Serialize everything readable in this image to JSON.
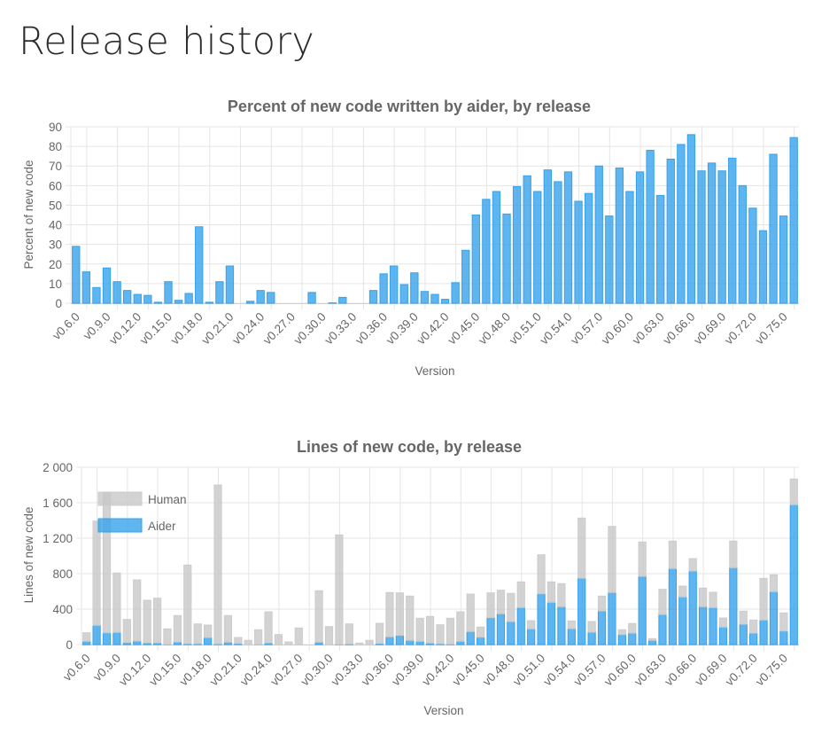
{
  "page": {
    "title": "Release history"
  },
  "colors": {
    "aider": "#36a2eb",
    "aider_fill": "rgba(54,162,235,0.8)",
    "human": "#cccccc",
    "human_fill": "rgba(200,200,200,0.8)",
    "grid": "#e5e5e5",
    "text": "#666666"
  },
  "chart_data": [
    {
      "type": "bar",
      "title": "Percent of new code written by aider, by release",
      "xlabel": "Version",
      "ylabel": "Percent of new code",
      "ylim": [
        0,
        90
      ],
      "yticks": [
        "0",
        "10",
        "20",
        "30",
        "40",
        "50",
        "60",
        "70",
        "80",
        "90"
      ],
      "ytick_values": [
        0,
        10,
        20,
        30,
        40,
        50,
        60,
        70,
        80,
        90
      ],
      "grid": true,
      "categories": [
        "v0.6.0",
        "v0.7.0",
        "v0.8.0",
        "v0.9.0",
        "v0.10.0",
        "v0.11.0",
        "v0.12.0",
        "v0.13.0",
        "v0.14.0",
        "v0.15.0",
        "v0.16.0",
        "v0.17.0",
        "v0.18.0",
        "v0.19.0",
        "v0.20.0",
        "v0.21.0",
        "v0.22.0",
        "v0.23.0",
        "v0.24.0",
        "v0.25.0",
        "v0.26.0",
        "v0.27.0",
        "v0.28.0",
        "v0.29.0",
        "v0.30.0",
        "v0.31.0",
        "v0.32.0",
        "v0.33.0",
        "v0.34.0",
        "v0.35.0",
        "v0.36.0",
        "v0.37.0",
        "v0.38.0",
        "v0.39.0",
        "v0.40.0",
        "v0.41.0",
        "v0.42.0",
        "v0.43.0",
        "v0.44.0",
        "v0.45.0",
        "v0.46.0",
        "v0.47.0",
        "v0.48.0",
        "v0.49.0",
        "v0.50.0",
        "v0.51.0",
        "v0.52.0",
        "v0.53.0",
        "v0.54.0",
        "v0.55.0",
        "v0.56.0",
        "v0.57.0",
        "v0.58.0",
        "v0.59.0",
        "v0.60.0",
        "v0.61.0",
        "v0.62.0",
        "v0.63.0",
        "v0.64.0",
        "v0.65.0",
        "v0.66.0",
        "v0.67.0",
        "v0.68.0",
        "v0.69.0",
        "v0.70.0",
        "v0.71.0",
        "v0.72.0",
        "v0.73.0",
        "v0.74.0",
        "v0.75.0",
        "v0.76.0"
      ],
      "shown_xticks": [
        "v0.6.0",
        "v0.9.0",
        "v0.12.0",
        "v0.15.0",
        "v0.18.0",
        "v0.21.0",
        "v0.24.0",
        "v0.27.0",
        "v0.30.0",
        "v0.33.0",
        "v0.36.0",
        "v0.39.0",
        "v0.42.0",
        "v0.45.0",
        "v0.48.0",
        "v0.51.0",
        "v0.54.0",
        "v0.57.0",
        "v0.60.0",
        "v0.63.0",
        "v0.66.0",
        "v0.69.0",
        "v0.72.0",
        "v0.75.0"
      ],
      "values": [
        29,
        16,
        8,
        18,
        11,
        6.5,
        4.5,
        4,
        0.5,
        11,
        1.5,
        5,
        39,
        0.5,
        11,
        19,
        0,
        1,
        6.5,
        5.5,
        0,
        0,
        0,
        5.5,
        0,
        0.2,
        3,
        0,
        0,
        6.5,
        15,
        19,
        9.5,
        15.5,
        6,
        4.5,
        2,
        10.5,
        27,
        45,
        53,
        57,
        45.5,
        59.5,
        65,
        57,
        68,
        62,
        67,
        52,
        56,
        70,
        44.5,
        69,
        57,
        67,
        78,
        55,
        73.5,
        81,
        86,
        67.5,
        71.5,
        67.5,
        74,
        60,
        48.5,
        37,
        76,
        44.5,
        84.5
      ]
    },
    {
      "type": "bar",
      "stacked": true,
      "title": "Lines of new code, by release",
      "xlabel": "Version",
      "ylabel": "Lines of new code",
      "ylim": [
        0,
        2000
      ],
      "yticks": [
        "0",
        "400",
        "800",
        "1 200",
        "1 600",
        "2 000"
      ],
      "ytick_values": [
        0,
        400,
        800,
        1200,
        1600,
        2000
      ],
      "grid": true,
      "legend": {
        "position": "top-left",
        "entries": [
          "Human",
          "Aider"
        ]
      },
      "shown_xticks": [
        "v0.6.0",
        "v0.9.0",
        "v0.12.0",
        "v0.15.0",
        "v0.18.0",
        "v0.21.0",
        "v0.24.0",
        "v0.27.0",
        "v0.30.0",
        "v0.33.0",
        "v0.36.0",
        "v0.39.0",
        "v0.42.0",
        "v0.45.0",
        "v0.48.0",
        "v0.51.0",
        "v0.54.0",
        "v0.57.0",
        "v0.60.0",
        "v0.63.0",
        "v0.66.0",
        "v0.69.0",
        "v0.72.0",
        "v0.75.0"
      ],
      "series": [
        {
          "name": "Aider",
          "values": [
            37,
            217,
            133,
            137,
            23,
            40,
            20,
            20,
            3,
            30,
            10,
            10,
            80,
            8,
            27,
            12,
            0,
            2,
            20,
            0,
            0,
            0,
            0,
            27,
            0,
            3,
            7,
            0,
            0,
            12,
            87,
            103,
            47,
            37,
            17,
            10,
            6,
            37,
            147,
            83,
            303,
            347,
            260,
            417,
            177,
            573,
            477,
            427,
            180,
            750,
            140,
            380,
            587,
            113,
            130,
            770,
            47,
            340,
            857,
            537,
            830,
            427,
            417,
            197,
            867,
            230,
            130,
            277,
            597,
            153,
            1577
          ]
        },
        {
          "name": "Human",
          "values": [
            96,
            1176,
            1584,
            670,
            260,
            690,
            480,
            503,
            174,
            297,
            887,
            223,
            140,
            1792,
            300,
            68,
            47,
            165,
            350,
            113,
            30,
            187,
            0,
            580,
            203,
            1234,
            226,
            17,
            47,
            228,
            500,
            480,
            500,
            260,
            300,
            213,
            291,
            333,
            423,
            114,
            280,
            266,
            317,
            290,
            93,
            440,
            230,
            260,
            87,
            677,
            120,
            167,
            746,
            54,
            107,
            387,
            20,
            283,
            310,
            123,
            140,
            210,
            173,
            103,
            300,
            147,
            147,
            470,
            190,
            204,
            290
          ]
        }
      ]
    }
  ]
}
